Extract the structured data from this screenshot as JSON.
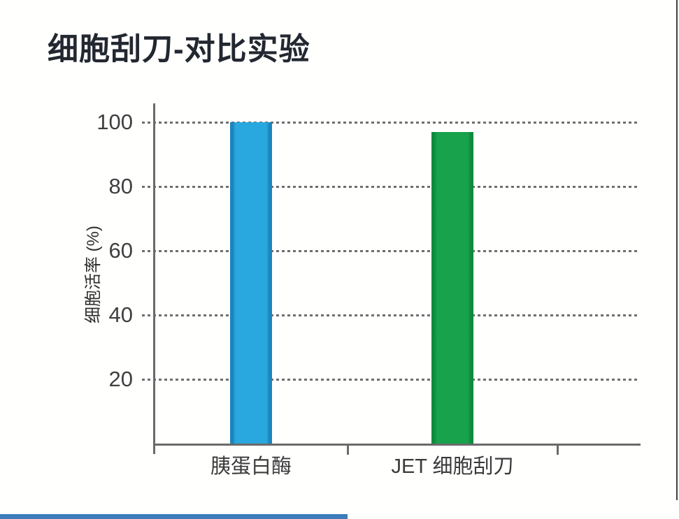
{
  "page": {
    "title": "细胞刮刀-对比实验"
  },
  "chart_data": {
    "type": "bar",
    "title": "细胞刮刀-对比实验",
    "categories": [
      "胰蛋白酶",
      "JET 细胞刮刀"
    ],
    "values": [
      100,
      97
    ],
    "xlabel": "",
    "ylabel": "细胞活率 (%)",
    "ylim": [
      0,
      105
    ],
    "yticks": [
      20,
      40,
      60,
      80,
      100
    ],
    "grid": "dotted-horizontal",
    "legend": "none",
    "bar_colors": [
      "#29A8DF",
      "#18A24B"
    ],
    "bar_edge_colors": [
      "#1C85BE",
      "#0D8B3F"
    ]
  },
  "decor": {
    "footer_bar_color": "#3C7CBA",
    "page_edge_color": "#3F3F3F"
  }
}
